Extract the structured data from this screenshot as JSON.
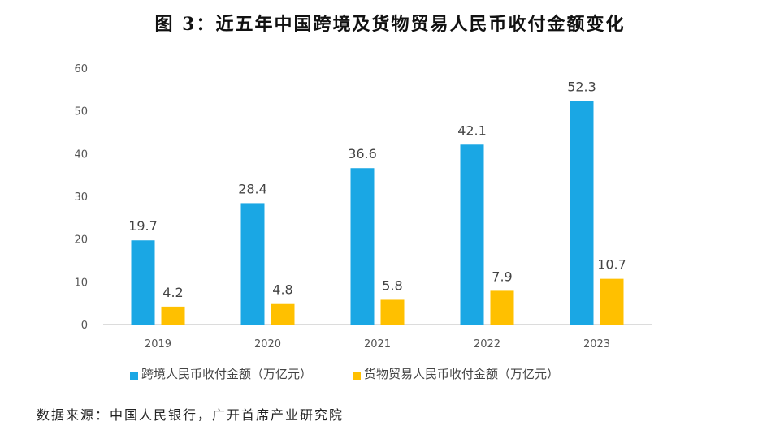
{
  "title": "图 3：近五年中国跨境及货物贸易人民币收付金额变化",
  "source": "数据来源：中国人民银行，广开首席产业研究院",
  "chart_data": {
    "type": "bar",
    "title": "图 3：近五年中国跨境及货物贸易人民币收付金额变化",
    "categories": [
      "2019",
      "2020",
      "2021",
      "2022",
      "2023"
    ],
    "series": [
      {
        "name": "跨境人民币收付金额（万亿元）",
        "values": [
          19.7,
          28.4,
          36.6,
          42.1,
          52.3
        ],
        "color": "#1AA7E4"
      },
      {
        "name": "货物贸易人民币收付金额（万亿元）",
        "values": [
          4.2,
          4.8,
          5.8,
          7.9,
          10.7
        ],
        "color": "#FFC000"
      }
    ],
    "ylim": [
      0,
      60
    ],
    "yticks": [
      "0",
      "10",
      "20",
      "30",
      "40",
      "50",
      "60"
    ],
    "grid": false,
    "legend": "bottom",
    "data_labels": true
  }
}
